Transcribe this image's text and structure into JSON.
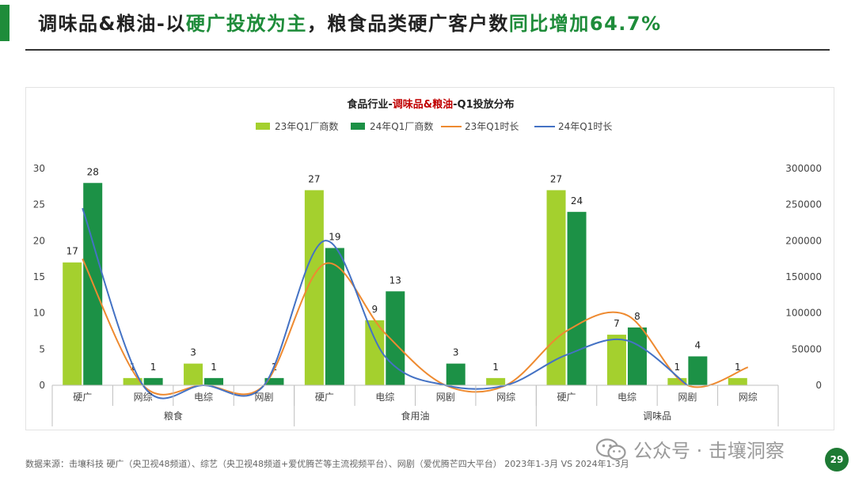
{
  "page": {
    "title_parts": [
      "调味品&粮油-以",
      "硬广投放为主",
      "，粮食品类硬广客户数",
      "同比增加64.7%"
    ],
    "footnote": "数据来源：击壤科技 硬广（央卫视48频道）、综艺（央卫视48频道+爱优腾芒等主流视频平台）、网剧（爱优腾芒四大平台） 2023年1-3月 VS 2024年1-3月",
    "watermark": "公众号 · 击壤洞察",
    "page_number": "29"
  },
  "colors": {
    "accent": "#1e8c3a",
    "bar_23": "#a4d02e",
    "bar_24": "#1c9146",
    "line_23": "#ee8a30",
    "line_24": "#4472c4",
    "title_red": "#c00000"
  },
  "chart_data": {
    "type": "bar",
    "title_parts": [
      "食品行业-",
      "调味品&粮油",
      "-Q1投放分布"
    ],
    "groups": [
      {
        "name": "粮食",
        "categories": [
          "硬广",
          "网综",
          "电综",
          "网剧"
        ]
      },
      {
        "name": "食用油",
        "categories": [
          "硬广",
          "电综",
          "网剧",
          "网综"
        ]
      },
      {
        "name": "调味品",
        "categories": [
          "硬广",
          "电综",
          "网剧",
          "网综"
        ]
      }
    ],
    "series": [
      {
        "name": "23年Q1厂商数",
        "kind": "bar",
        "axis": "left",
        "values": [
          17,
          1,
          3,
          null,
          27,
          9,
          null,
          1,
          27,
          7,
          1,
          1
        ],
        "labels": [
          "17",
          "1",
          "3",
          "",
          "27",
          "9",
          "",
          "1",
          "27",
          "7",
          "1",
          "1"
        ]
      },
      {
        "name": "24年Q1厂商数",
        "kind": "bar",
        "axis": "left",
        "values": [
          28,
          1,
          1,
          1,
          19,
          13,
          3,
          null,
          24,
          8,
          4,
          null
        ],
        "labels": [
          "28",
          "1",
          "1",
          "1",
          "19",
          "13",
          "3",
          "",
          "24",
          "8",
          "4",
          ""
        ]
      },
      {
        "name": "23年Q1时长",
        "kind": "line",
        "axis": "right",
        "values": [
          175000,
          0,
          0,
          0,
          168000,
          72000,
          0,
          0,
          75000,
          97000,
          0,
          25000
        ]
      },
      {
        "name": "24年Q1时长",
        "kind": "line",
        "axis": "right",
        "values": [
          245000,
          0,
          0,
          0,
          200000,
          40000,
          0,
          0,
          42000,
          62000,
          0,
          null
        ]
      }
    ],
    "y_left": {
      "min": 0,
      "max": 30,
      "ticks": [
        "0",
        "5",
        "10",
        "15",
        "20",
        "25",
        "30"
      ]
    },
    "y_right": {
      "min": 0,
      "max": 300000,
      "ticks": [
        "0",
        "50000",
        "100000",
        "150000",
        "200000",
        "250000",
        "300000"
      ]
    },
    "legend_position": "top"
  }
}
